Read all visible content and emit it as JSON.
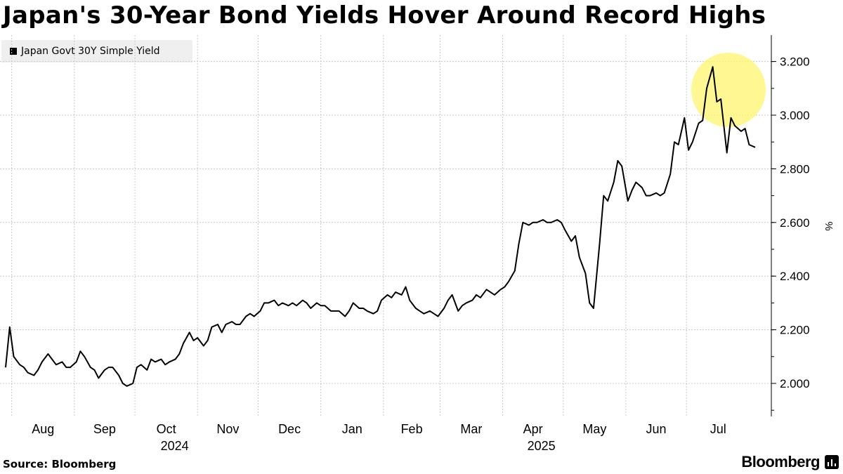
{
  "title": "Japan's 30-Year Bond Yields Hover Around Record Highs",
  "source": "Source: Bloomberg",
  "brand": "Bloomberg",
  "colors": {
    "line": "#000000",
    "highlight": "#fff56e",
    "grid": "#c8c8c8",
    "legend_bg": "#efefef"
  },
  "chart_data": {
    "type": "line",
    "ylabel": "%",
    "ylim": [
      1.88,
      3.3
    ],
    "y_ticks": [
      "2.000",
      "2.200",
      "2.400",
      "2.600",
      "2.800",
      "3.000",
      "3.200"
    ],
    "x_start": "2024-07-29",
    "x_end": "2025-08-04",
    "month_ticks": [
      {
        "label": "Aug",
        "date": "2024-08-01",
        "year": ""
      },
      {
        "label": "Sep",
        "date": "2024-09-01",
        "year": ""
      },
      {
        "label": "Oct",
        "date": "2024-10-01",
        "year": "2024"
      },
      {
        "label": "Nov",
        "date": "2024-11-01",
        "year": ""
      },
      {
        "label": "Dec",
        "date": "2024-12-01",
        "year": ""
      },
      {
        "label": "Jan",
        "date": "2025-01-01",
        "year": ""
      },
      {
        "label": "Feb",
        "date": "2025-02-01",
        "year": ""
      },
      {
        "label": "Mar",
        "date": "2025-03-01",
        "year": ""
      },
      {
        "label": "Apr",
        "date": "2025-04-01",
        "year": "2025"
      },
      {
        "label": "May",
        "date": "2025-05-01",
        "year": ""
      },
      {
        "label": "Jun",
        "date": "2025-06-01",
        "year": ""
      },
      {
        "label": "Jul",
        "date": "2025-07-01",
        "year": ""
      }
    ],
    "legend_position": "top-left",
    "grid": true,
    "series": [
      {
        "name": "Japan Govt 30Y Simple Yield",
        "color": "#000000",
        "points": [
          [
            "2024-07-29",
            2.06
          ],
          [
            "2024-07-31",
            2.21
          ],
          [
            "2024-08-02",
            2.1
          ],
          [
            "2024-08-05",
            2.07
          ],
          [
            "2024-08-07",
            2.06
          ],
          [
            "2024-08-09",
            2.04
          ],
          [
            "2024-08-12",
            2.03
          ],
          [
            "2024-08-14",
            2.05
          ],
          [
            "2024-08-16",
            2.08
          ],
          [
            "2024-08-19",
            2.11
          ],
          [
            "2024-08-21",
            2.09
          ],
          [
            "2024-08-23",
            2.07
          ],
          [
            "2024-08-26",
            2.08
          ],
          [
            "2024-08-28",
            2.06
          ],
          [
            "2024-08-30",
            2.06
          ],
          [
            "2024-09-02",
            2.08
          ],
          [
            "2024-09-04",
            2.12
          ],
          [
            "2024-09-06",
            2.1
          ],
          [
            "2024-09-09",
            2.06
          ],
          [
            "2024-09-11",
            2.05
          ],
          [
            "2024-09-13",
            2.02
          ],
          [
            "2024-09-16",
            2.05
          ],
          [
            "2024-09-18",
            2.06
          ],
          [
            "2024-09-20",
            2.06
          ],
          [
            "2024-09-23",
            2.03
          ],
          [
            "2024-09-25",
            2.0
          ],
          [
            "2024-09-27",
            1.99
          ],
          [
            "2024-09-30",
            2.0
          ],
          [
            "2024-10-02",
            2.06
          ],
          [
            "2024-10-04",
            2.07
          ],
          [
            "2024-10-07",
            2.05
          ],
          [
            "2024-10-09",
            2.09
          ],
          [
            "2024-10-11",
            2.08
          ],
          [
            "2024-10-14",
            2.09
          ],
          [
            "2024-10-16",
            2.07
          ],
          [
            "2024-10-18",
            2.08
          ],
          [
            "2024-10-21",
            2.09
          ],
          [
            "2024-10-23",
            2.11
          ],
          [
            "2024-10-25",
            2.15
          ],
          [
            "2024-10-28",
            2.19
          ],
          [
            "2024-10-30",
            2.16
          ],
          [
            "2024-11-01",
            2.17
          ],
          [
            "2024-11-04",
            2.14
          ],
          [
            "2024-11-06",
            2.16
          ],
          [
            "2024-11-08",
            2.21
          ],
          [
            "2024-11-11",
            2.22
          ],
          [
            "2024-11-13",
            2.19
          ],
          [
            "2024-11-15",
            2.22
          ],
          [
            "2024-11-18",
            2.23
          ],
          [
            "2024-11-20",
            2.22
          ],
          [
            "2024-11-22",
            2.22
          ],
          [
            "2024-11-25",
            2.25
          ],
          [
            "2024-11-27",
            2.26
          ],
          [
            "2024-11-29",
            2.25
          ],
          [
            "2024-12-02",
            2.27
          ],
          [
            "2024-12-04",
            2.3
          ],
          [
            "2024-12-06",
            2.3
          ],
          [
            "2024-12-09",
            2.31
          ],
          [
            "2024-12-11",
            2.29
          ],
          [
            "2024-12-13",
            2.3
          ],
          [
            "2024-12-16",
            2.29
          ],
          [
            "2024-12-18",
            2.3
          ],
          [
            "2024-12-20",
            2.29
          ],
          [
            "2024-12-23",
            2.31
          ],
          [
            "2024-12-25",
            2.3
          ],
          [
            "2024-12-27",
            2.28
          ],
          [
            "2024-12-30",
            2.3
          ],
          [
            "2025-01-01",
            2.29
          ],
          [
            "2025-01-03",
            2.29
          ],
          [
            "2025-01-06",
            2.27
          ],
          [
            "2025-01-08",
            2.27
          ],
          [
            "2025-01-10",
            2.27
          ],
          [
            "2025-01-13",
            2.25
          ],
          [
            "2025-01-15",
            2.27
          ],
          [
            "2025-01-17",
            2.3
          ],
          [
            "2025-01-20",
            2.28
          ],
          [
            "2025-01-22",
            2.28
          ],
          [
            "2025-01-24",
            2.27
          ],
          [
            "2025-01-27",
            2.26
          ],
          [
            "2025-01-29",
            2.27
          ],
          [
            "2025-01-31",
            2.31
          ],
          [
            "2025-02-03",
            2.33
          ],
          [
            "2025-02-05",
            2.32
          ],
          [
            "2025-02-07",
            2.34
          ],
          [
            "2025-02-10",
            2.33
          ],
          [
            "2025-02-12",
            2.36
          ],
          [
            "2025-02-14",
            2.31
          ],
          [
            "2025-02-17",
            2.28
          ],
          [
            "2025-02-19",
            2.27
          ],
          [
            "2025-02-21",
            2.26
          ],
          [
            "2025-02-24",
            2.27
          ],
          [
            "2025-02-26",
            2.26
          ],
          [
            "2025-02-28",
            2.25
          ],
          [
            "2025-03-03",
            2.28
          ],
          [
            "2025-03-05",
            2.31
          ],
          [
            "2025-03-07",
            2.33
          ],
          [
            "2025-03-10",
            2.27
          ],
          [
            "2025-03-12",
            2.29
          ],
          [
            "2025-03-14",
            2.3
          ],
          [
            "2025-03-17",
            2.31
          ],
          [
            "2025-03-19",
            2.33
          ],
          [
            "2025-03-21",
            2.32
          ],
          [
            "2025-03-24",
            2.35
          ],
          [
            "2025-03-26",
            2.34
          ],
          [
            "2025-03-28",
            2.33
          ],
          [
            "2025-03-31",
            2.35
          ],
          [
            "2025-04-02",
            2.36
          ],
          [
            "2025-04-04",
            2.38
          ],
          [
            "2025-04-07",
            2.42
          ],
          [
            "2025-04-09",
            2.52
          ],
          [
            "2025-04-11",
            2.6
          ],
          [
            "2025-04-14",
            2.59
          ],
          [
            "2025-04-16",
            2.6
          ],
          [
            "2025-04-18",
            2.6
          ],
          [
            "2025-04-21",
            2.61
          ],
          [
            "2025-04-23",
            2.6
          ],
          [
            "2025-04-25",
            2.6
          ],
          [
            "2025-04-28",
            2.61
          ],
          [
            "2025-04-30",
            2.6
          ],
          [
            "2025-05-02",
            2.57
          ],
          [
            "2025-05-05",
            2.53
          ],
          [
            "2025-05-07",
            2.55
          ],
          [
            "2025-05-09",
            2.47
          ],
          [
            "2025-05-12",
            2.41
          ],
          [
            "2025-05-14",
            2.3
          ],
          [
            "2025-05-16",
            2.28
          ],
          [
            "2025-05-19",
            2.52
          ],
          [
            "2025-05-21",
            2.7
          ],
          [
            "2025-05-23",
            2.68
          ],
          [
            "2025-05-26",
            2.75
          ],
          [
            "2025-05-28",
            2.83
          ],
          [
            "2025-05-30",
            2.81
          ],
          [
            "2025-06-02",
            2.68
          ],
          [
            "2025-06-04",
            2.72
          ],
          [
            "2025-06-06",
            2.75
          ],
          [
            "2025-06-09",
            2.73
          ],
          [
            "2025-06-11",
            2.7
          ],
          [
            "2025-06-13",
            2.7
          ],
          [
            "2025-06-16",
            2.71
          ],
          [
            "2025-06-18",
            2.7
          ],
          [
            "2025-06-20",
            2.71
          ],
          [
            "2025-06-23",
            2.78
          ],
          [
            "2025-06-25",
            2.9
          ],
          [
            "2025-06-27",
            2.89
          ],
          [
            "2025-06-30",
            2.99
          ],
          [
            "2025-07-02",
            2.87
          ],
          [
            "2025-07-04",
            2.9
          ],
          [
            "2025-07-07",
            2.97
          ],
          [
            "2025-07-09",
            2.98
          ],
          [
            "2025-07-11",
            3.1
          ],
          [
            "2025-07-14",
            3.18
          ],
          [
            "2025-07-16",
            3.05
          ],
          [
            "2025-07-18",
            3.06
          ],
          [
            "2025-07-21",
            2.86
          ],
          [
            "2025-07-23",
            2.99
          ],
          [
            "2025-07-25",
            2.96
          ],
          [
            "2025-07-28",
            2.94
          ],
          [
            "2025-07-30",
            2.95
          ],
          [
            "2025-08-01",
            2.89
          ],
          [
            "2025-08-04",
            2.88
          ]
        ]
      }
    ]
  }
}
